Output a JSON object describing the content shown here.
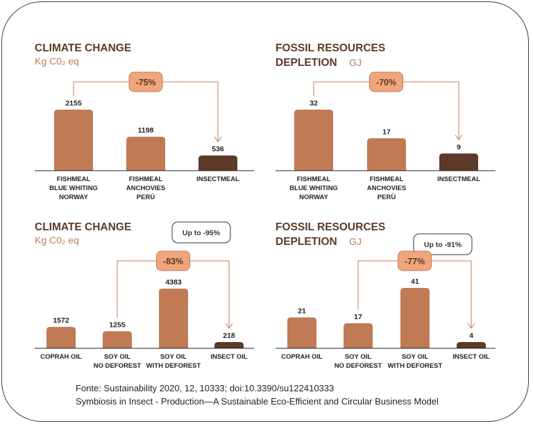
{
  "colors": {
    "bar": "#c07a55",
    "insect": "#5b3a27",
    "title": "#5b3a27",
    "unit": "#c07a55",
    "badge": "#f0a57c",
    "badge_text": "#5b3a27",
    "arrow": "#c07a55",
    "axis": "#222222"
  },
  "chart_data": [
    {
      "type": "bar",
      "title": [
        "CLIMATE CHANGE"
      ],
      "unit": "Kg C0₂ eq",
      "categories": [
        [
          "FISHMEAL",
          "BLUE WHITING",
          "NORWAY"
        ],
        [
          "FISHMEAL",
          "ANCHOVIES",
          "PERÙ"
        ],
        [
          "INSECTMEAL"
        ]
      ],
      "values": [
        2155,
        1198,
        536
      ],
      "highlight_index": 2,
      "reduction_label": "-75%",
      "reduction_from": 0,
      "reduction_to": 2,
      "ylim": [
        0,
        2500
      ]
    },
    {
      "type": "bar",
      "title": [
        "FOSSIL RESOURCES",
        "DEPLETION"
      ],
      "unit": "GJ",
      "categories": [
        [
          "FISHMEAL",
          "BLUE WHITING",
          "NORWAY"
        ],
        [
          "FISHMEAL",
          "ANCHOVIES",
          "PERÙ"
        ],
        [
          "INSECTMEAL"
        ]
      ],
      "values": [
        32,
        17,
        9
      ],
      "highlight_index": 2,
      "reduction_label": "-70%",
      "reduction_from": 0,
      "reduction_to": 2,
      "ylim": [
        0,
        37
      ]
    },
    {
      "type": "bar",
      "title": [
        "CLIMATE CHANGE"
      ],
      "unit": "Kg C0₂ eq",
      "note": "Up to -95%",
      "categories": [
        [
          "COPRAH OIL"
        ],
        [
          "SOY OIL",
          "NO DEFOREST"
        ],
        [
          "SOY OIL",
          "WITH DEFOREST"
        ],
        [
          "INSECT OIL"
        ]
      ],
      "values": [
        1572,
        1255,
        4383,
        218
      ],
      "highlight_index": 3,
      "reduction_label": "-83%",
      "reduction_from": 1,
      "reduction_to": 3,
      "ylim": [
        0,
        5000
      ]
    },
    {
      "type": "bar",
      "title": [
        "FOSSIL RESOURCES",
        "DEPLETION"
      ],
      "unit": "GJ",
      "note": "Up to -91%",
      "categories": [
        [
          "COPRAH OIL"
        ],
        [
          "SOY OIL",
          "NO DEFOREST"
        ],
        [
          "SOY OIL",
          "WITH DEFOREST"
        ],
        [
          "INSECT OIL"
        ]
      ],
      "values": [
        21,
        17,
        41,
        4
      ],
      "highlight_index": 3,
      "reduction_label": "-77%",
      "reduction_from": 1,
      "reduction_to": 3,
      "ylim": [
        0,
        46
      ]
    }
  ],
  "source": {
    "line1": "Fonte: Sustainability 2020, 12, 10333; doi:10.3390/su122410333",
    "line2": "Symbiosis in Insect - Production—A Sustainable Eco-Efficient and Circular Business Model"
  }
}
